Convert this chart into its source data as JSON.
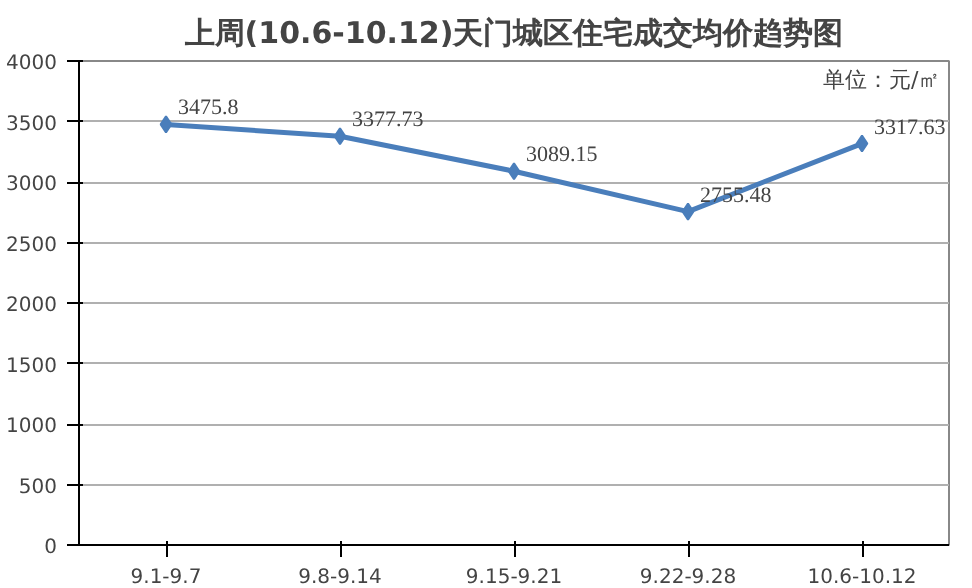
{
  "chart_data": {
    "type": "line",
    "title": "上周(10.6-10.12)天门城区住宅成交均价趋势图",
    "annotations": [
      "单位：元/㎡"
    ],
    "categories": [
      "9.1-9.7",
      "9.8-9.14",
      "9.15-9.21",
      "9.22-9.28",
      "10.6-10.12"
    ],
    "series": [
      {
        "color": "#4a7ebb",
        "values": [
          3475.8,
          3377.73,
          3089.15,
          2755.48,
          3317.63
        ]
      }
    ],
    "ylim": [
      0,
      4000
    ],
    "yticks": [
      0,
      500,
      1000,
      1500,
      2000,
      2500,
      3000,
      3500,
      4000
    ],
    "grid": "y",
    "marker": "diamond",
    "line_style": "solid",
    "data_labels": true
  }
}
